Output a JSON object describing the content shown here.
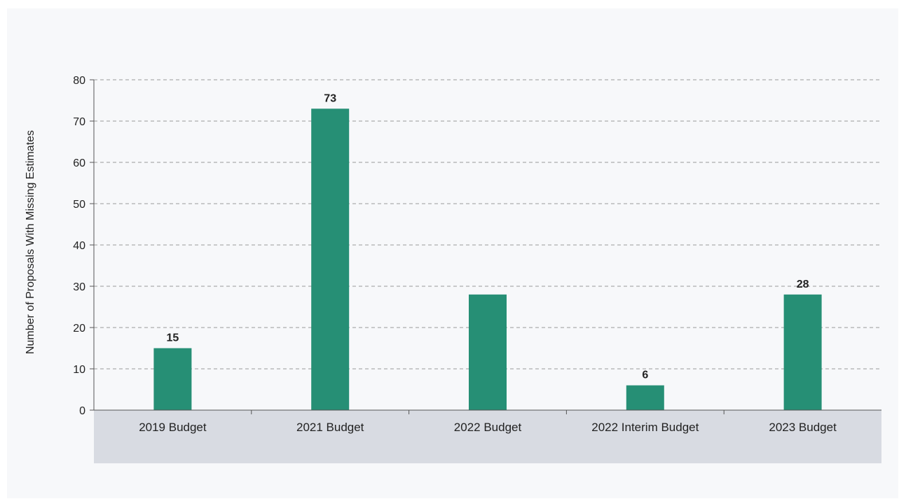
{
  "chart_data": {
    "type": "bar",
    "title": "",
    "xlabel": "",
    "ylabel": "Number of Proposals With Missing Estimates",
    "categories": [
      "2019 Budget",
      "2021 Budget",
      "2022 Budget",
      "2022 Interim Budget",
      "2023 Budget"
    ],
    "values": [
      15,
      73,
      28,
      6,
      28
    ],
    "data_labels": [
      "15",
      "73",
      "",
      "6",
      "28"
    ],
    "ylim": [
      0,
      80
    ],
    "yticks": [
      0,
      10,
      20,
      30,
      40,
      50,
      60,
      70,
      80
    ],
    "grid": true,
    "legend": "none",
    "colors": {
      "bar": "#268f75",
      "category_band": "#d8dbe2",
      "grid": "#9a9a9a",
      "axis": "#555555",
      "background": "#f7f8fa"
    }
  }
}
